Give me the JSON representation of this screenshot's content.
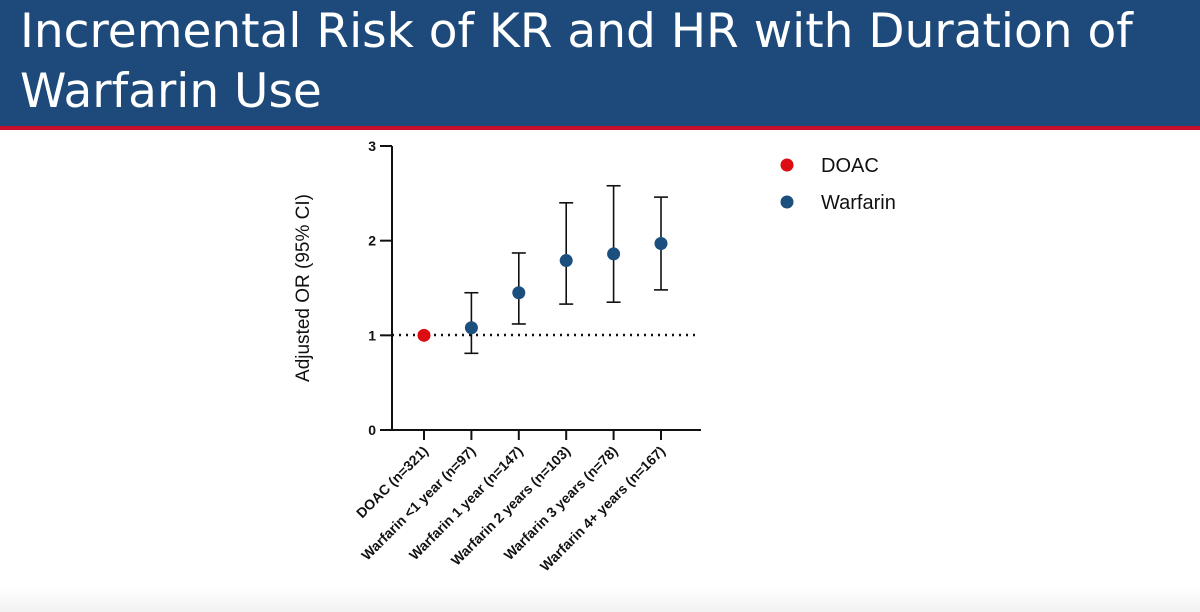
{
  "slide": {
    "title": "Incremental Risk of KR and HR with Duration of Warfarin Use"
  },
  "colors": {
    "title_bar": "#1d4a7b",
    "accent": "#c8102e",
    "doac": "#dd0c12",
    "warfarin": "#1b4f7d"
  },
  "chart_data": {
    "type": "scatter",
    "ylabel": "Adjusted OR (95% CI)",
    "xlabel": "",
    "ylim": [
      0,
      3
    ],
    "yticks": [
      "0",
      "1",
      "2",
      "3"
    ],
    "reference_line": 1,
    "categories": [
      "DOAC (n=321)",
      "Warfarin <1 year (n=97)",
      "Warfarin 1 year (n=147)",
      "Warfarin 2 years (n=103)",
      "Warfarin 3 years (n=78)",
      "Warfarin 4+ years (n=167)"
    ],
    "series": [
      {
        "name": "DOAC",
        "color": "#dd0c12",
        "points": [
          {
            "category": "DOAC (n=321)",
            "value": 1.0
          }
        ]
      },
      {
        "name": "Warfarin",
        "color": "#1b4f7d",
        "points": [
          {
            "category": "Warfarin <1 year (n=97)",
            "value": 1.08,
            "lower": 0.81,
            "upper": 1.45
          },
          {
            "category": "Warfarin 1 year (n=147)",
            "value": 1.45,
            "lower": 1.12,
            "upper": 1.87
          },
          {
            "category": "Warfarin 2 years (n=103)",
            "value": 1.79,
            "lower": 1.33,
            "upper": 2.4
          },
          {
            "category": "Warfarin 3 years (n=78)",
            "value": 1.86,
            "lower": 1.35,
            "upper": 2.58
          },
          {
            "category": "Warfarin 4+ years (n=167)",
            "value": 1.97,
            "lower": 1.48,
            "upper": 2.46
          }
        ]
      }
    ],
    "legend": {
      "position": "top-right",
      "entries": [
        "DOAC",
        "Warfarin"
      ]
    }
  }
}
